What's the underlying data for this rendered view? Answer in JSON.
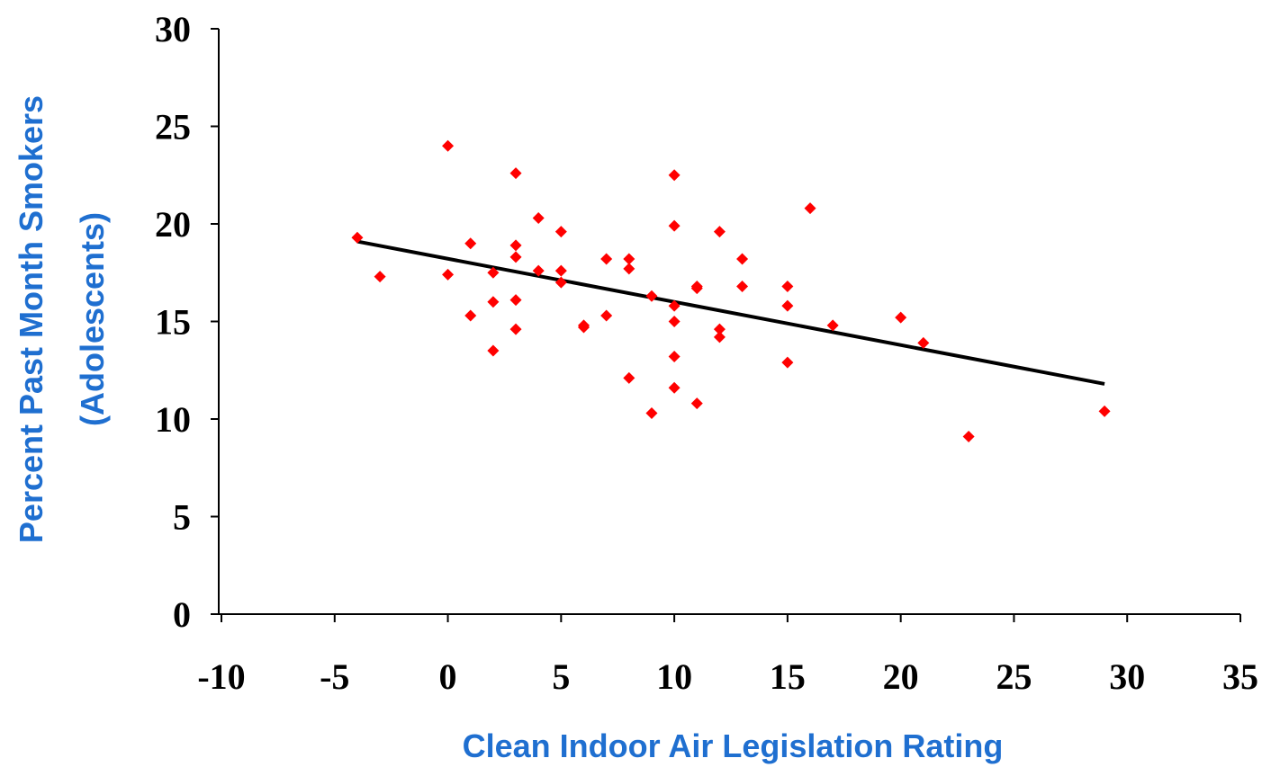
{
  "chart_data": {
    "type": "scatter",
    "x_label": "Clean Indoor Air Legislation Rating",
    "y_label": [
      "Percent Past Month Smokers",
      "(Adolescents)"
    ],
    "xlim": [
      -10,
      35
    ],
    "xticks": [
      -10,
      -5,
      0,
      5,
      10,
      15,
      20,
      25,
      30,
      35
    ],
    "ylim": [
      0,
      30
    ],
    "yticks": [
      0,
      5,
      10,
      15,
      20,
      25,
      30
    ],
    "series": [
      {
        "color": "#ff0000",
        "x": [
          -4,
          -3,
          0,
          0,
          1,
          1,
          2,
          2,
          2,
          3,
          3,
          3,
          3,
          3,
          4,
          4,
          5,
          5,
          5,
          6,
          6,
          7,
          7,
          8,
          8,
          8,
          9,
          9,
          10,
          10,
          10,
          10,
          10,
          10,
          11,
          11,
          11,
          12,
          12,
          12,
          13,
          13,
          15,
          15,
          15,
          16,
          17,
          20,
          21,
          23,
          29
        ],
        "values": [
          19.3,
          17.3,
          24.0,
          17.4,
          19.0,
          15.3,
          17.5,
          16.0,
          13.5,
          22.6,
          18.9,
          18.3,
          16.1,
          14.6,
          20.3,
          17.6,
          19.6,
          17.6,
          17.0,
          14.8,
          14.7,
          18.2,
          15.3,
          18.2,
          17.7,
          12.1,
          16.3,
          10.3,
          22.5,
          19.9,
          15.8,
          15.0,
          13.2,
          11.6,
          16.8,
          16.7,
          10.8,
          19.6,
          14.6,
          14.2,
          18.2,
          16.8,
          16.8,
          15.8,
          12.9,
          20.8,
          14.8,
          15.2,
          13.9,
          9.1,
          10.4
        ]
      }
    ],
    "trendline": {
      "color": "#000000",
      "x": [
        -4,
        29
      ],
      "values": [
        19.1,
        11.8
      ]
    }
  }
}
